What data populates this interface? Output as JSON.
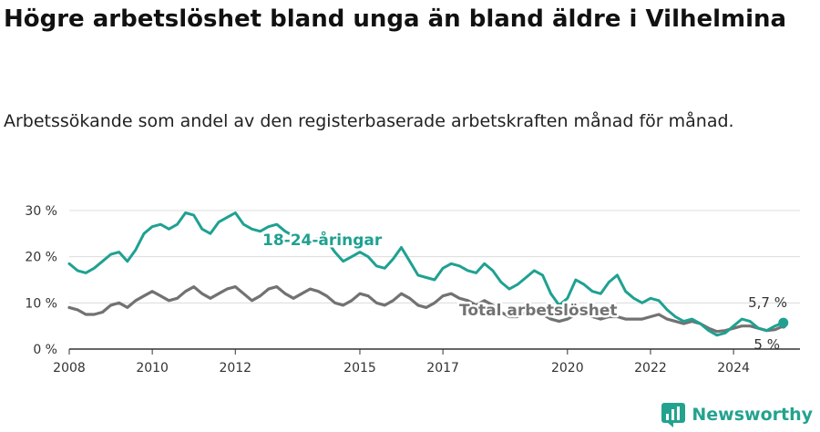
{
  "title": "Högre arbetslöshet bland unga än bland äldre i Vilhelmina",
  "subtitle": "Arbetssökande som andel av den registerbaserade arbetskraften månad för månad.",
  "brand": "Newsworthy",
  "colors": {
    "young": "#1fa191",
    "total": "#727272",
    "grid": "#dcdcdc",
    "axis": "#333333",
    "brand": "#23a38f"
  },
  "chart_data": {
    "type": "line",
    "title": "Högre arbetslöshet bland unga än bland äldre i Vilhelmina",
    "subtitle": "Arbetssökande som andel av den registerbaserade arbetskraften månad för månad.",
    "x_axis": {
      "min": 2008,
      "max": 2025.6,
      "ticks": [
        2008,
        2010,
        2012,
        2015,
        2017,
        2020,
        2022,
        2024
      ],
      "tick_labels": [
        "2008",
        "2010",
        "2012",
        "2015",
        "2017",
        "2020",
        "2022",
        "2024"
      ]
    },
    "y_axis": {
      "min": 0,
      "max": 30,
      "ticks": [
        0,
        10,
        20,
        30
      ],
      "tick_labels": [
        "0 %",
        "10 %",
        "20 %",
        "30 %"
      ]
    },
    "grid": true,
    "legend": "inline labels",
    "series": [
      {
        "name": "18-24-åringar",
        "color": "#1fa191",
        "end_label": "5,7 %",
        "x": [
          2008.0,
          2008.2,
          2008.4,
          2008.6,
          2008.8,
          2009.0,
          2009.2,
          2009.4,
          2009.6,
          2009.8,
          2010.0,
          2010.2,
          2010.4,
          2010.6,
          2010.8,
          2011.0,
          2011.2,
          2011.4,
          2011.6,
          2011.8,
          2012.0,
          2012.2,
          2012.4,
          2012.6,
          2012.8,
          2013.0,
          2013.2,
          2013.4,
          2013.6,
          2013.8,
          2014.0,
          2014.2,
          2014.4,
          2014.6,
          2014.8,
          2015.0,
          2015.2,
          2015.4,
          2015.6,
          2015.8,
          2016.0,
          2016.2,
          2016.4,
          2016.6,
          2016.8,
          2017.0,
          2017.2,
          2017.4,
          2017.6,
          2017.8,
          2018.0,
          2018.2,
          2018.4,
          2018.6,
          2018.8,
          2019.0,
          2019.2,
          2019.4,
          2019.6,
          2019.8,
          2020.0,
          2020.2,
          2020.4,
          2020.6,
          2020.8,
          2021.0,
          2021.2,
          2021.4,
          2021.6,
          2021.8,
          2022.0,
          2022.2,
          2022.4,
          2022.6,
          2022.8,
          2023.0,
          2023.2,
          2023.4,
          2023.6,
          2023.8,
          2024.0,
          2024.2,
          2024.4,
          2024.6,
          2024.8,
          2025.0,
          2025.2
        ],
        "values": [
          18.5,
          17.0,
          16.5,
          17.5,
          19.0,
          20.5,
          21.0,
          19.0,
          21.5,
          25.0,
          26.5,
          27.0,
          26.0,
          27.0,
          29.5,
          29.0,
          26.0,
          25.0,
          27.5,
          28.5,
          29.5,
          27.0,
          26.0,
          25.5,
          26.5,
          27.0,
          25.5,
          24.5,
          23.0,
          23.5,
          24.0,
          23.5,
          21.0,
          19.0,
          20.0,
          21.0,
          20.0,
          18.0,
          17.5,
          19.5,
          22.0,
          19.0,
          16.0,
          15.5,
          15.0,
          17.5,
          18.5,
          18.0,
          17.0,
          16.5,
          18.5,
          17.0,
          14.5,
          13.0,
          14.0,
          15.5,
          17.0,
          16.0,
          12.0,
          9.5,
          11.0,
          15.0,
          14.0,
          12.5,
          12.0,
          14.5,
          16.0,
          12.5,
          11.0,
          10.0,
          11.0,
          10.5,
          8.5,
          7.0,
          6.0,
          6.5,
          5.5,
          4.0,
          3.0,
          3.5,
          5.0,
          6.5,
          6.0,
          4.5,
          4.0,
          5.0,
          5.7
        ]
      },
      {
        "name": "Total arbetslöshet",
        "color": "#727272",
        "end_label": "5 %",
        "x": [
          2008.0,
          2008.2,
          2008.4,
          2008.6,
          2008.8,
          2009.0,
          2009.2,
          2009.4,
          2009.6,
          2009.8,
          2010.0,
          2010.2,
          2010.4,
          2010.6,
          2010.8,
          2011.0,
          2011.2,
          2011.4,
          2011.6,
          2011.8,
          2012.0,
          2012.2,
          2012.4,
          2012.6,
          2012.8,
          2013.0,
          2013.2,
          2013.4,
          2013.6,
          2013.8,
          2014.0,
          2014.2,
          2014.4,
          2014.6,
          2014.8,
          2015.0,
          2015.2,
          2015.4,
          2015.6,
          2015.8,
          2016.0,
          2016.2,
          2016.4,
          2016.6,
          2016.8,
          2017.0,
          2017.2,
          2017.4,
          2017.6,
          2017.8,
          2018.0,
          2018.2,
          2018.4,
          2018.6,
          2018.8,
          2019.0,
          2019.2,
          2019.4,
          2019.6,
          2019.8,
          2020.0,
          2020.2,
          2020.4,
          2020.6,
          2020.8,
          2021.0,
          2021.2,
          2021.4,
          2021.6,
          2021.8,
          2022.0,
          2022.2,
          2022.4,
          2022.6,
          2022.8,
          2023.0,
          2023.2,
          2023.4,
          2023.6,
          2023.8,
          2024.0,
          2024.2,
          2024.4,
          2024.6,
          2024.8,
          2025.0,
          2025.2
        ],
        "values": [
          9.0,
          8.5,
          7.5,
          7.5,
          8.0,
          9.5,
          10.0,
          9.0,
          10.5,
          11.5,
          12.5,
          11.5,
          10.5,
          11.0,
          12.5,
          13.5,
          12.0,
          11.0,
          12.0,
          13.0,
          13.5,
          12.0,
          10.5,
          11.5,
          13.0,
          13.5,
          12.0,
          11.0,
          12.0,
          13.0,
          12.5,
          11.5,
          10.0,
          9.5,
          10.5,
          12.0,
          11.5,
          10.0,
          9.5,
          10.5,
          12.0,
          11.0,
          9.5,
          9.0,
          10.0,
          11.5,
          12.0,
          11.0,
          10.5,
          9.5,
          10.5,
          9.5,
          8.0,
          7.0,
          7.0,
          8.0,
          8.5,
          7.5,
          6.5,
          6.0,
          6.5,
          7.5,
          7.5,
          7.0,
          6.5,
          7.0,
          7.0,
          6.5,
          6.5,
          6.5,
          7.0,
          7.5,
          6.5,
          6.0,
          5.5,
          6.0,
          5.5,
          4.5,
          3.8,
          4.0,
          4.5,
          5.0,
          5.0,
          4.5,
          4.0,
          4.2,
          5.0
        ]
      }
    ]
  }
}
